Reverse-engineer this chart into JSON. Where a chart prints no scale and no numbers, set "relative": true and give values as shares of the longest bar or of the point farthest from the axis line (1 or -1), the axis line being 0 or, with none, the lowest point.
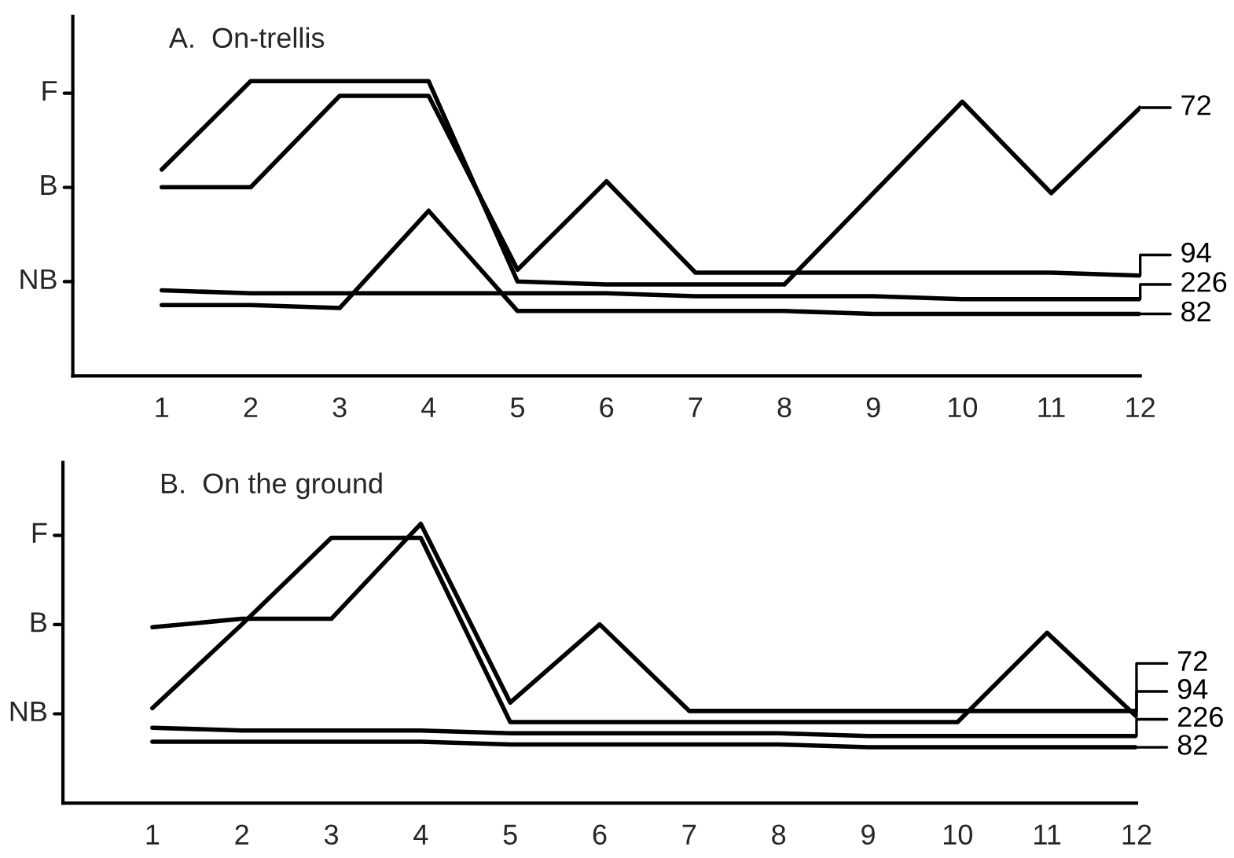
{
  "chart_data": [
    {
      "type": "line",
      "relative": true,
      "title": "A.  On-trellis",
      "categories": [
        "1",
        "2",
        "3",
        "4",
        "5",
        "6",
        "7",
        "8",
        "9",
        "10",
        "11",
        "12"
      ],
      "annotations": [
        "F",
        "B",
        "NB"
      ],
      "grid": false,
      "legend": "right",
      "marker": "none",
      "line_style": "solid",
      "series": [
        {
          "name": "72",
          "color": "#000000",
          "values": [
            0.7,
            1.0,
            1.0,
            1.0,
            0.32,
            0.31,
            0.31,
            0.31,
            0.62,
            0.93,
            0.62,
            0.91
          ]
        },
        {
          "name": "94",
          "color": "#000000",
          "values": [
            0.64,
            0.64,
            0.95,
            0.95,
            0.36,
            0.66,
            0.35,
            0.35,
            0.35,
            0.35,
            0.35,
            0.34
          ]
        },
        {
          "name": "226",
          "color": "#000000",
          "values": [
            0.29,
            0.28,
            0.28,
            0.28,
            0.28,
            0.28,
            0.27,
            0.27,
            0.27,
            0.26,
            0.26,
            0.26
          ]
        },
        {
          "name": "82",
          "color": "#000000",
          "values": [
            0.24,
            0.24,
            0.23,
            0.56,
            0.22,
            0.22,
            0.22,
            0.22,
            0.21,
            0.21,
            0.21,
            0.21
          ]
        }
      ]
    },
    {
      "type": "line",
      "relative": true,
      "title": "B.  On the ground",
      "categories": [
        "1",
        "2",
        "3",
        "4",
        "5",
        "6",
        "7",
        "8",
        "9",
        "10",
        "11",
        "12"
      ],
      "annotations": [
        "F",
        "B",
        "NB"
      ],
      "grid": false,
      "legend": "right",
      "marker": "none",
      "line_style": "solid",
      "series": [
        {
          "name": "72",
          "color": "#000000",
          "values": [
            0.34,
            0.64,
            0.95,
            0.95,
            0.29,
            0.29,
            0.29,
            0.29,
            0.29,
            0.29,
            0.61,
            0.31
          ]
        },
        {
          "name": "94",
          "color": "#000000",
          "values": [
            0.63,
            0.66,
            0.66,
            1.0,
            0.36,
            0.64,
            0.33,
            0.33,
            0.33,
            0.33,
            0.33,
            0.33
          ]
        },
        {
          "name": "226",
          "color": "#000000",
          "values": [
            0.27,
            0.26,
            0.26,
            0.26,
            0.25,
            0.25,
            0.25,
            0.25,
            0.24,
            0.24,
            0.24,
            0.24
          ]
        },
        {
          "name": "82",
          "color": "#000000",
          "values": [
            0.22,
            0.22,
            0.22,
            0.22,
            0.21,
            0.21,
            0.21,
            0.21,
            0.2,
            0.2,
            0.2,
            0.2
          ]
        }
      ]
    }
  ]
}
